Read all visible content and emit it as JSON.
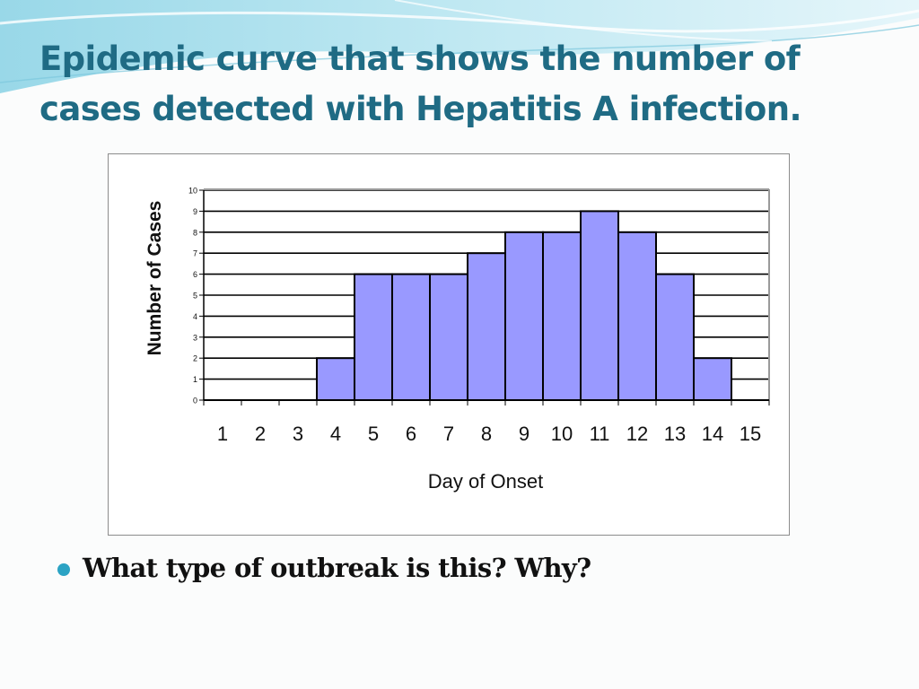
{
  "slide": {
    "title": "Epidemic curve that shows the number of cases detected with Hepatitis A infection.",
    "bullet": "What type of outbreak is this? Why?"
  },
  "colors": {
    "title": "#1f6b84",
    "bar_fill": "#9999ff",
    "bar_stroke": "#000000",
    "bullet": "#2ba3c4"
  },
  "chart_data": {
    "type": "bar",
    "categories": [
      "1",
      "2",
      "3",
      "4",
      "5",
      "6",
      "7",
      "8",
      "9",
      "10",
      "11",
      "12",
      "13",
      "14",
      "15"
    ],
    "values": [
      0,
      0,
      0,
      2,
      6,
      6,
      6,
      7,
      8,
      8,
      9,
      8,
      6,
      2,
      0
    ],
    "xlabel": "Day of Onset",
    "ylabel": "Number of Cases",
    "ylim": [
      0,
      10
    ],
    "yticks": [
      0,
      1,
      2,
      3,
      4,
      5,
      6,
      7,
      8,
      9,
      10
    ],
    "grid": true,
    "legend": "none"
  }
}
